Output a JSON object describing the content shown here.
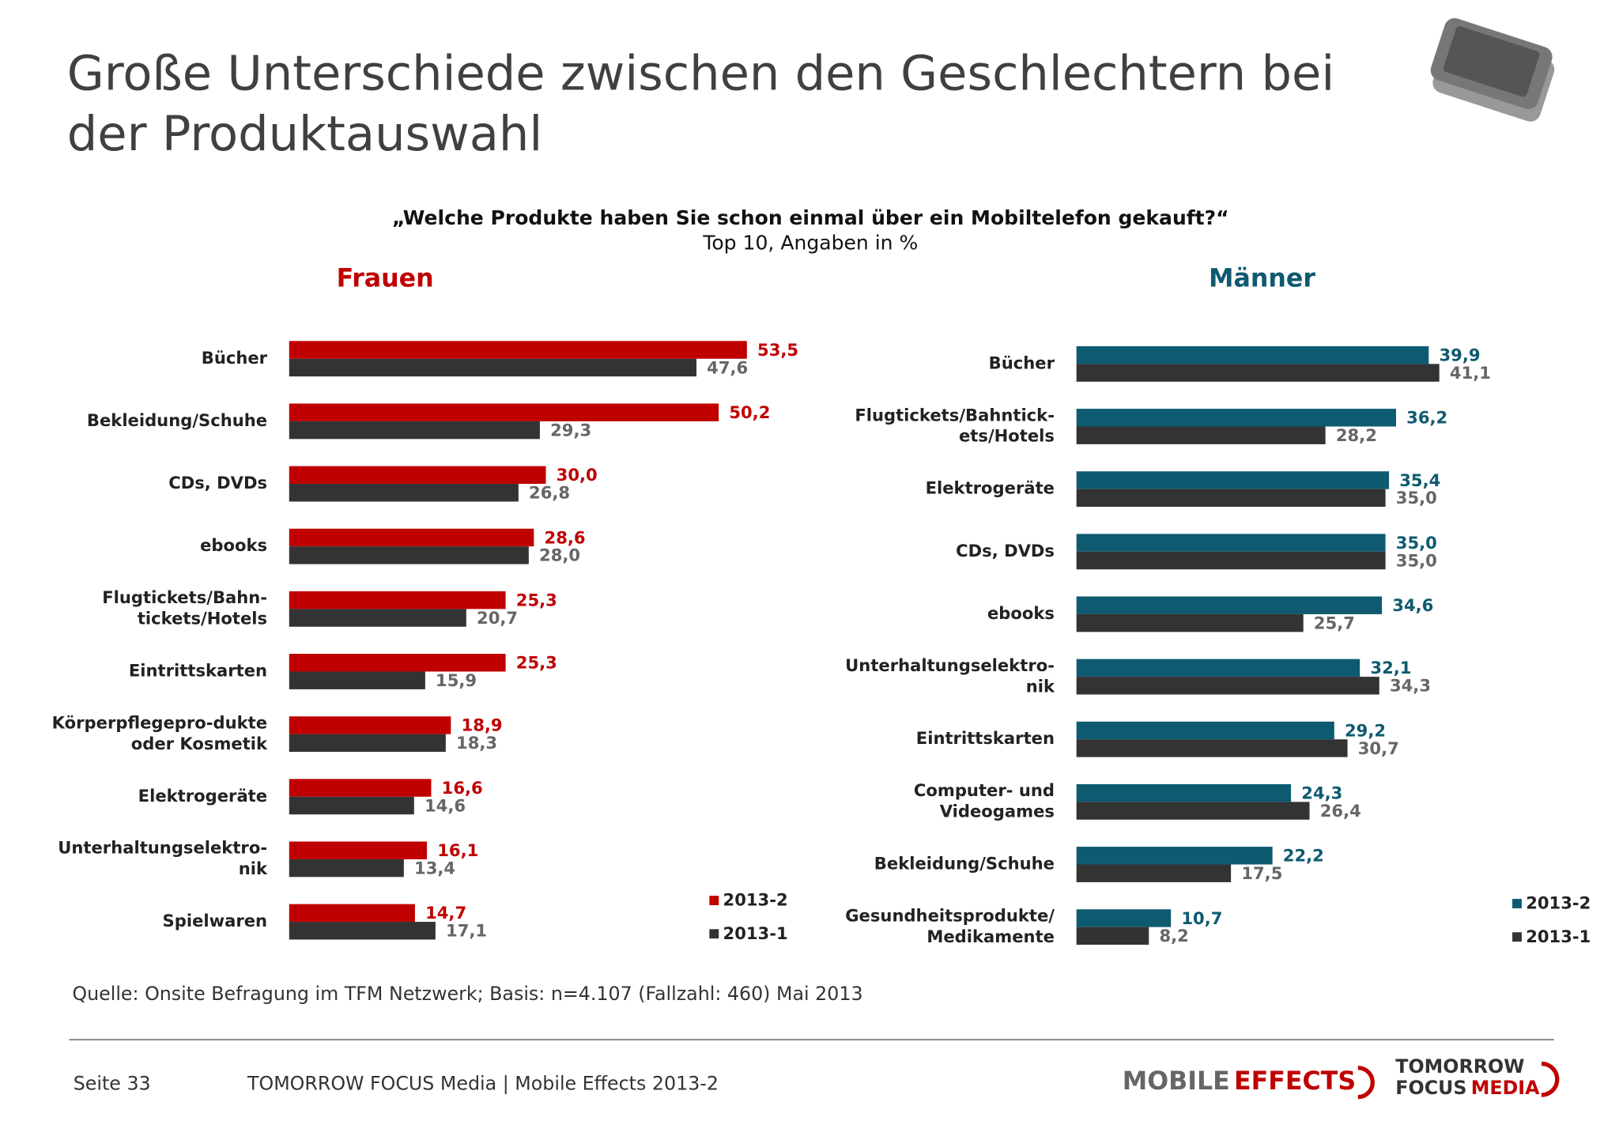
{
  "header": {
    "title": "Große Unterschiede zwischen den Geschlechtern bei\nder Produktauswahl"
  },
  "question": "„Welche Produkte haben Sie schon einmal über ein Mobiltelefon gekauft?“",
  "subtitle": "Top 10, Angaben in %",
  "chart_data": [
    {
      "type": "bar",
      "orientation": "horizontal",
      "title": "Frauen",
      "title_color": "#c00000",
      "categories": [
        "Bücher",
        "Bekleidung/Schuhe",
        "CDs, DVDs",
        "ebooks",
        "Flugtickets/Bahn-\ntickets/Hotels",
        "Eintrittskarten",
        "Körperpflegepro-dukte\noder Kosmetik",
        "Elektrogeräte",
        "Unterhaltungselektro-\nnik",
        "Spielwaren"
      ],
      "series": [
        {
          "name": "2013-2",
          "color": "#c00000",
          "label_color": "#c00000",
          "values": [
            53.5,
            50.2,
            30.0,
            28.6,
            25.3,
            25.3,
            18.9,
            16.6,
            16.1,
            14.7
          ],
          "value_labels": [
            "53,5",
            "50,2",
            "30,0",
            "28,6",
            "25,3",
            "25,3",
            "18,9",
            "16,6",
            "16,1",
            "14,7"
          ]
        },
        {
          "name": "2013-1",
          "color": "#333333",
          "label_color": "#666666",
          "values": [
            47.6,
            29.3,
            26.8,
            28.0,
            20.7,
            15.9,
            18.3,
            14.6,
            13.4,
            17.1
          ],
          "value_labels": [
            "47,6",
            "29,3",
            "26,8",
            "28,0",
            "20,7",
            "15,9",
            "18,3",
            "14,6",
            "13,4",
            "17,1"
          ]
        }
      ],
      "legend": "bottom-right"
    },
    {
      "type": "bar",
      "orientation": "horizontal",
      "title": "Männer",
      "title_color": "#0e5a70",
      "categories": [
        "Bücher",
        "Flugtickets/Bahntick-\nets/Hotels",
        "Elektrogeräte",
        "CDs, DVDs",
        "ebooks",
        "Unterhaltungselektro-\nnik",
        "Eintrittskarten",
        "Computer- und\nVideogames",
        "Bekleidung/Schuhe",
        "Gesundheitsprodukte/\nMedikamente"
      ],
      "series": [
        {
          "name": "2013-2",
          "color": "#0e5a70",
          "label_color": "#0e5a70",
          "values": [
            39.9,
            36.2,
            35.4,
            35.0,
            34.6,
            32.1,
            29.2,
            24.3,
            22.2,
            10.7
          ],
          "value_labels": [
            "39,9",
            "36,2",
            "35,4",
            "35,0",
            "34,6",
            "32,1",
            "29,2",
            "24,3",
            "22,2",
            "10,7"
          ]
        },
        {
          "name": "2013-1",
          "color": "#333333",
          "label_color": "#666666",
          "values": [
            41.1,
            28.2,
            35.0,
            35.0,
            25.7,
            34.3,
            30.7,
            26.4,
            17.5,
            8.2
          ],
          "value_labels": [
            "41,1",
            "28,2",
            "35,0",
            "35,0",
            "25,7",
            "34,3",
            "30,7",
            "26,4",
            "17,5",
            "8,2"
          ]
        }
      ],
      "legend": "bottom-right"
    }
  ],
  "source": "Quelle: Onsite Befragung im TFM Netzwerk; Basis: n=4.107 (Fallzahl: 460) Mai 2013",
  "footer": {
    "page": "Seite 33",
    "text": "TOMORROW FOCUS Media | Mobile Effects 2013-2",
    "logo_mobile": "MOBILE",
    "logo_effects": "EFFECTS",
    "logo_tomorrow": "TOMORROW",
    "logo_focus": "FOCUS",
    "logo_media": "MEDIA"
  }
}
